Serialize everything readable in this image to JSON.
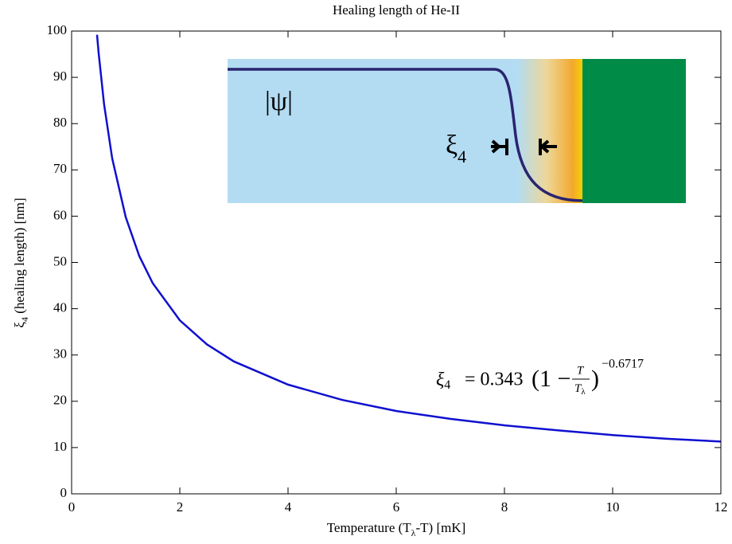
{
  "chart_data": {
    "type": "line",
    "title": "Healing length of He-II",
    "x_label": [
      "Temperature (T",
      "λ",
      "-T) [mK]"
    ],
    "y_label": [
      "ξ",
      "4",
      " (healing length) [nm]"
    ],
    "x": [
      0.47,
      0.5,
      0.6,
      0.75,
      1,
      1.25,
      1.5,
      2,
      2.5,
      3,
      4,
      5,
      6,
      7,
      8,
      9,
      10,
      11,
      12
    ],
    "series": [
      {
        "color": "#1010d0",
        "values": [
          99.2,
          95.2,
          84.2,
          72.5,
          59.8,
          51.4,
          45.5,
          37.5,
          32.3,
          28.6,
          23.6,
          20.3,
          17.9,
          16.2,
          14.8,
          13.7,
          12.7,
          11.9,
          11.3
        ]
      }
    ],
    "xlim": [
      0,
      12
    ],
    "xticks": [
      0,
      2,
      4,
      6,
      8,
      10,
      12
    ],
    "ylim": [
      0,
      100
    ],
    "yticks": [
      0,
      10,
      20,
      30,
      40,
      50,
      60,
      70,
      80,
      90,
      100
    ],
    "annotations": {
      "equation": {
        "lhs": "ξ",
        "lhs_sub": "4",
        "rhs": "= 0.343",
        "open": "(1 −",
        "num": "T",
        "den": "T",
        "den_sub": "λ",
        "close": ")",
        "exponent": "−0.6717"
      },
      "inset_psi": "|ψ|",
      "inset_xi": "ξ",
      "inset_xi_sub": "4"
    }
  }
}
